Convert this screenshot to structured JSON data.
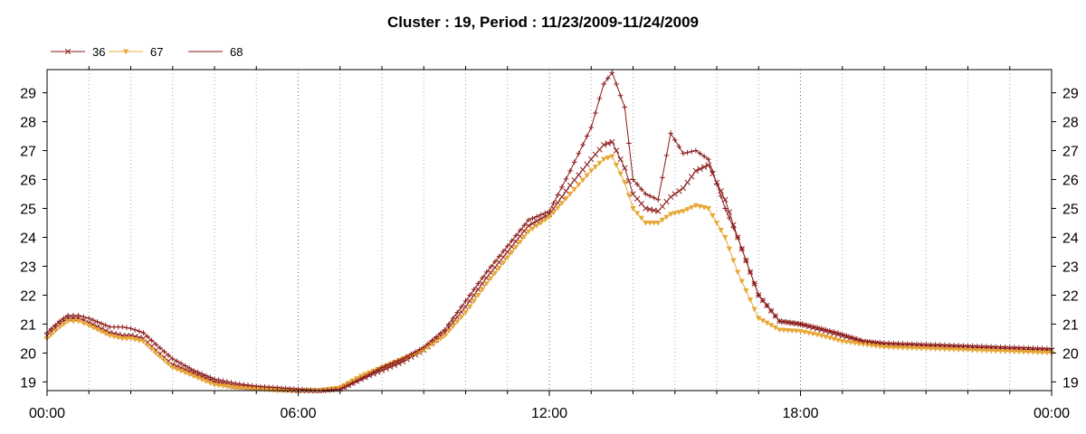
{
  "chart_data": {
    "type": "line",
    "title": "Cluster : 19, Period : 11/23/2009-11/24/2009",
    "xlabel": "",
    "ylabel": "",
    "x_ticks": [
      "00:00",
      "06:00",
      "12:00",
      "18:00",
      "00:00"
    ],
    "x_range_hours": [
      0,
      24
    ],
    "y_ticks": [
      "19",
      "20",
      "21",
      "22",
      "23",
      "24",
      "25",
      "26",
      "27",
      "28",
      "29"
    ],
    "ylim": [
      18.7,
      29.8
    ],
    "grid": "vertical dotted",
    "legend_position": "top-left",
    "series": [
      {
        "name": "36",
        "color": "#8b1a1a",
        "marker": "x",
        "x_hours": [
          0,
          0.3,
          0.5,
          0.75,
          1,
          1.5,
          1.8,
          2,
          2.3,
          2.6,
          3,
          3.5,
          4,
          4.5,
          5,
          5.5,
          6,
          6.5,
          7,
          7.5,
          8,
          8.5,
          9,
          9.5,
          10,
          10.5,
          11,
          11.5,
          12,
          12.5,
          13,
          13.3,
          13.5,
          13.8,
          14,
          14.3,
          14.6,
          14.9,
          15.2,
          15.5,
          15.8,
          16.2,
          16.5,
          17,
          17.5,
          18,
          18.5,
          19,
          19.5,
          20,
          21,
          22,
          23,
          24
        ],
        "values": [
          20.6,
          21.0,
          21.2,
          21.2,
          21.05,
          20.7,
          20.6,
          20.6,
          20.5,
          20.1,
          19.6,
          19.3,
          19.0,
          18.85,
          18.8,
          18.75,
          18.7,
          18.7,
          18.75,
          19.1,
          19.4,
          19.7,
          20.1,
          20.7,
          21.6,
          22.6,
          23.5,
          24.4,
          24.8,
          25.8,
          26.7,
          27.2,
          27.3,
          26.4,
          25.5,
          25.0,
          24.9,
          25.4,
          25.7,
          26.3,
          26.5,
          25.3,
          24.0,
          22.0,
          21.1,
          21.0,
          20.8,
          20.6,
          20.4,
          20.3,
          20.25,
          20.2,
          20.15,
          20.1
        ]
      },
      {
        "name": "67",
        "color": "#e8a838",
        "marker": "triangle-down",
        "x_hours": [
          0,
          0.3,
          0.5,
          0.75,
          1,
          1.5,
          1.8,
          2,
          2.3,
          2.6,
          3,
          3.5,
          4,
          4.5,
          5,
          5.5,
          6,
          6.5,
          7,
          7.5,
          8,
          8.5,
          9,
          9.5,
          10,
          10.5,
          11,
          11.5,
          12,
          12.5,
          13,
          13.3,
          13.5,
          13.8,
          14,
          14.3,
          14.6,
          14.9,
          15.2,
          15.5,
          15.8,
          16.2,
          16.5,
          17,
          17.5,
          18,
          18.5,
          19,
          19.5,
          20,
          21,
          22,
          23,
          24
        ],
        "values": [
          20.5,
          20.9,
          21.1,
          21.1,
          20.95,
          20.6,
          20.5,
          20.5,
          20.4,
          20.0,
          19.5,
          19.2,
          18.9,
          18.8,
          18.75,
          18.7,
          18.7,
          18.7,
          18.8,
          19.2,
          19.5,
          19.8,
          20.1,
          20.6,
          21.4,
          22.4,
          23.3,
          24.2,
          24.7,
          25.5,
          26.3,
          26.7,
          26.8,
          25.9,
          25.0,
          24.5,
          24.5,
          24.8,
          24.9,
          25.1,
          25.0,
          24.0,
          22.8,
          21.2,
          20.8,
          20.75,
          20.6,
          20.4,
          20.3,
          20.2,
          20.15,
          20.1,
          20.05,
          20.0
        ]
      },
      {
        "name": "68",
        "color": "#8b1a1a",
        "marker": "plus",
        "x_hours": [
          0,
          0.3,
          0.5,
          0.75,
          1,
          1.5,
          1.8,
          2,
          2.3,
          2.6,
          3,
          3.5,
          4,
          4.5,
          5,
          5.5,
          6,
          6.5,
          7,
          7.5,
          8,
          8.5,
          9,
          9.5,
          10,
          10.5,
          11,
          11.5,
          12,
          12.5,
          13,
          13.3,
          13.5,
          13.8,
          14,
          14.3,
          14.6,
          14.9,
          15.2,
          15.5,
          15.8,
          16.2,
          16.5,
          17,
          17.5,
          18,
          18.5,
          19,
          19.5,
          20,
          21,
          22,
          23,
          24
        ],
        "values": [
          20.7,
          21.1,
          21.3,
          21.3,
          21.2,
          20.9,
          20.9,
          20.85,
          20.7,
          20.3,
          19.8,
          19.4,
          19.1,
          18.95,
          18.85,
          18.8,
          18.75,
          18.7,
          18.75,
          19.1,
          19.5,
          19.8,
          20.2,
          20.8,
          21.8,
          22.8,
          23.7,
          24.6,
          24.9,
          26.3,
          27.8,
          29.3,
          29.7,
          28.5,
          26.0,
          25.5,
          25.3,
          27.6,
          26.9,
          27.0,
          26.7,
          25.0,
          24.0,
          22.0,
          21.1,
          21.0,
          20.85,
          20.65,
          20.4,
          20.35,
          20.3,
          20.25,
          20.2,
          20.15
        ]
      }
    ]
  }
}
